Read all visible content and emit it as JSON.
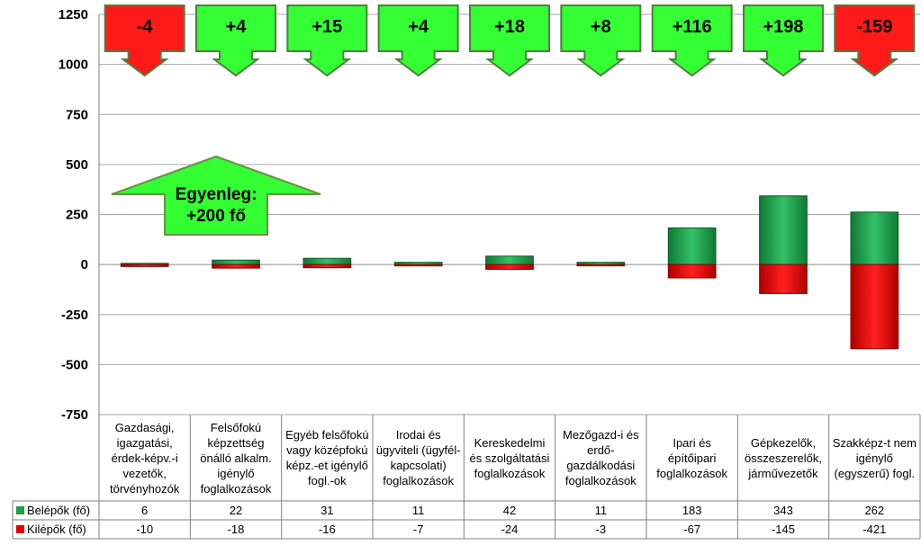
{
  "chart_data": {
    "type": "bar",
    "title": "",
    "xlabel": "",
    "ylabel": "",
    "ylim": [
      -750,
      1250
    ],
    "yticks": [
      1250,
      1000,
      750,
      500,
      250,
      0,
      -250,
      -500,
      -750
    ],
    "grid": true,
    "categories": [
      "Gazdasági, igazgatási, érdek-képv.-i vezetők, törvényhozók",
      "Felsőfokú képzettség önálló alkalm. igénylő foglalkozások",
      "Egyéb felsőfokú vagy középfokú képz.-et igénylő fogl.-ok",
      "Irodai és ügyviteli (ügyfél-kapcsolati) foglalkozások",
      "Kereskedelmi és szolgáltatási foglalkozások",
      "Mezőgazd-i és erdő-gazdálkodási foglalkozások",
      "Ipari és építőipari foglalkozások",
      "Gépkezelők, összeszerelők, járművezetők",
      "Szakképz-t nem igénylő (egyszerű) fogl."
    ],
    "series": [
      {
        "name": "Belépők (fő)",
        "color": "#1e9e4a",
        "values": [
          6,
          22,
          31,
          11,
          42,
          11,
          183,
          343,
          262
        ]
      },
      {
        "name": "Kilépők (fő)",
        "color": "#e00000",
        "values": [
          -10,
          -18,
          -16,
          -7,
          -24,
          -3,
          -67,
          -145,
          -421
        ]
      }
    ],
    "table_labels": {
      "in": [
        "6",
        "22",
        "31",
        "11",
        "42",
        "11",
        "183",
        "343",
        "262"
      ],
      "out": [
        "-10",
        "-18",
        "-16",
        "-7",
        "-24",
        "-3",
        "-67",
        "-145",
        "-421"
      ]
    },
    "annotations": {
      "differences": [
        {
          "label": "-4",
          "color": "#ff1a1a"
        },
        {
          "label": "+4",
          "color": "#33ff33"
        },
        {
          "label": "+15",
          "color": "#33ff33"
        },
        {
          "label": "+4",
          "color": "#33ff33"
        },
        {
          "label": "+18",
          "color": "#33ff33"
        },
        {
          "label": "+8",
          "color": "#33ff33"
        },
        {
          "label": "+116",
          "color": "#33ff33"
        },
        {
          "label": "+198",
          "color": "#33ff33"
        },
        {
          "label": "-159",
          "color": "#ff1a1a"
        }
      ],
      "balance": {
        "line1": "Egyenleg:",
        "line2": "+200 fő",
        "color": "#33ff33"
      }
    }
  }
}
